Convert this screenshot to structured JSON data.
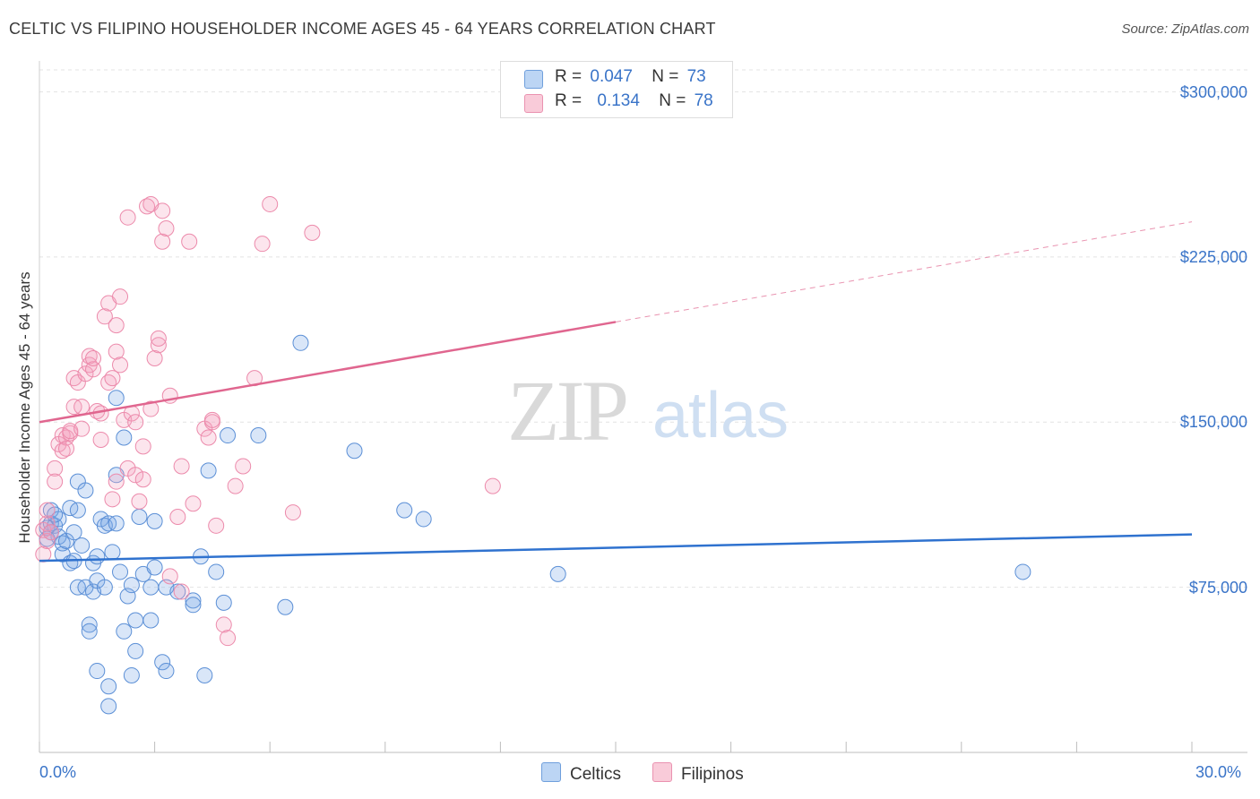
{
  "header": {
    "title": "CELTIC VS FILIPINO HOUSEHOLDER INCOME AGES 45 - 64 YEARS CORRELATION CHART",
    "source": "Source: ZipAtlas.com"
  },
  "watermark": {
    "zip": "ZIP",
    "atlas": "atlas"
  },
  "legend": {
    "rows": [
      {
        "r_label": "R =",
        "r_value": "0.047",
        "n_label": "N =",
        "n_value": "73",
        "color": "#a9c8f0"
      },
      {
        "r_label": "R =",
        "r_value": "0.134",
        "n_label": "N =",
        "n_value": "78",
        "color": "#f6b8cc"
      }
    ]
  },
  "bottom_legend": {
    "celtics": "Celtics",
    "filipinos": "Filipinos"
  },
  "colors": {
    "celtic_fill": "rgba(120,165,230,0.28)",
    "celtic_stroke": "#5b8fd6",
    "celtic_line": "#2f72cf",
    "filipino_fill": "rgba(245,160,190,0.28)",
    "filipino_stroke": "#ec8aab",
    "filipino_line": "#e0668f",
    "grid": "#e3e3e3",
    "axis_text": "#3a74c8"
  },
  "chart_data": {
    "type": "scatter",
    "title": "CELTIC VS FILIPINO HOUSEHOLDER INCOME AGES 45 - 64 YEARS CORRELATION CHART",
    "xlabel": "",
    "ylabel": "Householder Income Ages 45 - 64 years",
    "xlim": [
      0,
      30
    ],
    "ylim": [
      0,
      310000
    ],
    "x_tick_labels": [
      "0.0%",
      "30.0%"
    ],
    "y_ticks": [
      75000,
      150000,
      225000,
      300000
    ],
    "y_tick_labels": [
      "$75,000",
      "$150,000",
      "$225,000",
      "$300,000"
    ],
    "grid": true,
    "legend_position": "top-center",
    "series": [
      {
        "name": "Celtics",
        "r": 0.047,
        "n": 73,
        "trend": {
          "x": [
            0,
            30
          ],
          "y": [
            87000,
            99000
          ],
          "dashed_from": null
        },
        "points": [
          [
            0.2,
            102000
          ],
          [
            0.3,
            104000
          ],
          [
            0.3,
            110000
          ],
          [
            0.4,
            103000
          ],
          [
            0.5,
            106000
          ],
          [
            0.5,
            98000
          ],
          [
            0.6,
            90000
          ],
          [
            0.6,
            95000
          ],
          [
            0.7,
            96000
          ],
          [
            0.8,
            86000
          ],
          [
            0.9,
            100000
          ],
          [
            0.9,
            87000
          ],
          [
            0.8,
            111000
          ],
          [
            1.0,
            75000
          ],
          [
            1.0,
            110000
          ],
          [
            1.0,
            123000
          ],
          [
            1.1,
            94000
          ],
          [
            1.2,
            75000
          ],
          [
            1.2,
            119000
          ],
          [
            1.3,
            58000
          ],
          [
            1.3,
            55000
          ],
          [
            1.4,
            73000
          ],
          [
            1.4,
            86000
          ],
          [
            1.5,
            89000
          ],
          [
            1.5,
            78000
          ],
          [
            1.5,
            37000
          ],
          [
            1.6,
            106000
          ],
          [
            1.7,
            103000
          ],
          [
            1.7,
            75000
          ],
          [
            1.8,
            104000
          ],
          [
            1.8,
            30000
          ],
          [
            1.8,
            21000
          ],
          [
            1.9,
            91000
          ],
          [
            2.0,
            161000
          ],
          [
            2.0,
            126000
          ],
          [
            2.0,
            104000
          ],
          [
            2.1,
            82000
          ],
          [
            2.2,
            143000
          ],
          [
            2.2,
            55000
          ],
          [
            2.3,
            71000
          ],
          [
            2.4,
            76000
          ],
          [
            2.4,
            35000
          ],
          [
            2.5,
            60000
          ],
          [
            2.5,
            46000
          ],
          [
            2.6,
            107000
          ],
          [
            2.7,
            81000
          ],
          [
            2.9,
            60000
          ],
          [
            2.9,
            75000
          ],
          [
            3.0,
            105000
          ],
          [
            3.0,
            84000
          ],
          [
            3.2,
            41000
          ],
          [
            3.3,
            75000
          ],
          [
            3.3,
            37000
          ],
          [
            3.6,
            73000
          ],
          [
            4.0,
            69000
          ],
          [
            4.0,
            67000
          ],
          [
            4.2,
            89000
          ],
          [
            4.3,
            35000
          ],
          [
            4.4,
            128000
          ],
          [
            4.6,
            82000
          ],
          [
            4.8,
            68000
          ],
          [
            4.9,
            144000
          ],
          [
            5.7,
            144000
          ],
          [
            6.4,
            66000
          ],
          [
            6.8,
            186000
          ],
          [
            8.2,
            137000
          ],
          [
            9.5,
            110000
          ],
          [
            10.0,
            106000
          ],
          [
            13.5,
            81000
          ],
          [
            25.6,
            82000
          ],
          [
            0.2,
            97000
          ],
          [
            0.4,
            108000
          ],
          [
            0.3,
            100000
          ]
        ]
      },
      {
        "name": "Filipinos",
        "r": 0.134,
        "n": 78,
        "trend": {
          "x": [
            0,
            30
          ],
          "y": [
            150000,
            241000
          ],
          "dashed_from": 15
        },
        "points": [
          [
            0.1,
            90000
          ],
          [
            0.1,
            101000
          ],
          [
            0.2,
            96000
          ],
          [
            0.2,
            104000
          ],
          [
            0.2,
            110000
          ],
          [
            0.3,
            100000
          ],
          [
            0.4,
            129000
          ],
          [
            0.4,
            123000
          ],
          [
            0.5,
            140000
          ],
          [
            0.6,
            144000
          ],
          [
            0.6,
            137000
          ],
          [
            0.7,
            143000
          ],
          [
            0.7,
            138000
          ],
          [
            0.8,
            145000
          ],
          [
            0.8,
            146000
          ],
          [
            0.9,
            157000
          ],
          [
            0.9,
            170000
          ],
          [
            1.0,
            168000
          ],
          [
            1.1,
            157000
          ],
          [
            1.1,
            147000
          ],
          [
            1.2,
            172000
          ],
          [
            1.3,
            176000
          ],
          [
            1.3,
            180000
          ],
          [
            1.4,
            174000
          ],
          [
            1.4,
            179000
          ],
          [
            1.5,
            155000
          ],
          [
            1.6,
            154000
          ],
          [
            1.6,
            142000
          ],
          [
            1.7,
            198000
          ],
          [
            1.8,
            168000
          ],
          [
            1.8,
            204000
          ],
          [
            1.9,
            115000
          ],
          [
            1.9,
            170000
          ],
          [
            2.0,
            182000
          ],
          [
            2.0,
            194000
          ],
          [
            2.0,
            123000
          ],
          [
            2.1,
            207000
          ],
          [
            2.1,
            176000
          ],
          [
            2.2,
            151000
          ],
          [
            2.3,
            243000
          ],
          [
            2.3,
            129000
          ],
          [
            2.4,
            154000
          ],
          [
            2.5,
            126000
          ],
          [
            2.5,
            150000
          ],
          [
            2.6,
            114000
          ],
          [
            2.7,
            124000
          ],
          [
            2.7,
            139000
          ],
          [
            2.8,
            248000
          ],
          [
            2.9,
            249000
          ],
          [
            2.9,
            156000
          ],
          [
            3.0,
            179000
          ],
          [
            3.1,
            185000
          ],
          [
            3.1,
            188000
          ],
          [
            3.2,
            232000
          ],
          [
            3.2,
            246000
          ],
          [
            3.3,
            238000
          ],
          [
            3.4,
            162000
          ],
          [
            3.4,
            80000
          ],
          [
            3.6,
            107000
          ],
          [
            3.7,
            73000
          ],
          [
            3.7,
            130000
          ],
          [
            3.9,
            232000
          ],
          [
            4.0,
            113000
          ],
          [
            4.3,
            147000
          ],
          [
            4.4,
            143000
          ],
          [
            4.5,
            150000
          ],
          [
            4.5,
            151000
          ],
          [
            4.6,
            103000
          ],
          [
            4.8,
            58000
          ],
          [
            4.9,
            52000
          ],
          [
            5.1,
            121000
          ],
          [
            5.3,
            130000
          ],
          [
            5.6,
            170000
          ],
          [
            5.8,
            231000
          ],
          [
            6.0,
            249000
          ],
          [
            6.6,
            109000
          ],
          [
            7.1,
            236000
          ],
          [
            11.8,
            121000
          ]
        ]
      }
    ]
  }
}
